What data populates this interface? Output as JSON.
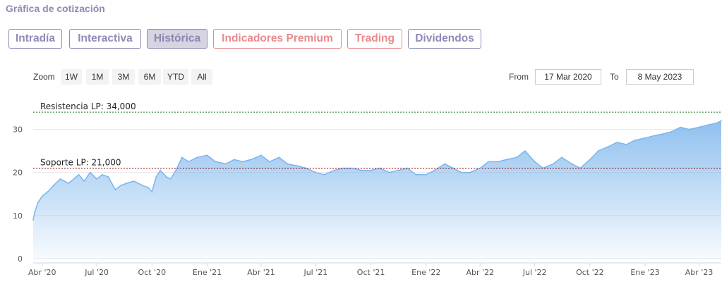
{
  "header": {
    "title": "Gráfica de cotización"
  },
  "tabs": [
    {
      "label": "Intradía",
      "active": false,
      "premium": false
    },
    {
      "label": "Interactiva",
      "active": false,
      "premium": false
    },
    {
      "label": "Histórica",
      "active": true,
      "premium": false
    },
    {
      "label": "Indicadores Premium",
      "active": false,
      "premium": true
    },
    {
      "label": "Trading",
      "active": false,
      "premium": true
    },
    {
      "label": "Dividendos",
      "active": false,
      "premium": false
    }
  ],
  "zoom": {
    "label": "Zoom",
    "buttons": [
      "1W",
      "1M",
      "3M",
      "6M",
      "YTD",
      "All"
    ]
  },
  "range": {
    "from_label": "From",
    "from_value": "17 Mar 2020",
    "to_label": "To",
    "to_value": "8 May 2023"
  },
  "colors": {
    "accent": "#8e8bb4",
    "premium": "#e9898d",
    "line": "#7cb5ec",
    "resistance": "#1a7a1a",
    "support": "#8b0000"
  },
  "chart_data": {
    "type": "area",
    "ylim": [
      0,
      35
    ],
    "yticks": [
      0,
      10,
      20,
      30
    ],
    "xticks": [
      "Abr '20",
      "Jul '20",
      "Oct '20",
      "Ene '21",
      "Abr '21",
      "Jul '21",
      "Oct '21",
      "Ene '22",
      "Abr '22",
      "Jul '22",
      "Oct '22",
      "Ene '23",
      "Abr '23"
    ],
    "x": [
      "2020-03-17",
      "2020-03-20",
      "2020-03-25",
      "2020-04-01",
      "2020-04-10",
      "2020-04-20",
      "2020-05-01",
      "2020-05-15",
      "2020-06-01",
      "2020-06-10",
      "2020-06-20",
      "2020-07-01",
      "2020-07-10",
      "2020-07-20",
      "2020-08-01",
      "2020-08-10",
      "2020-08-20",
      "2020-09-01",
      "2020-09-15",
      "2020-09-25",
      "2020-10-01",
      "2020-10-08",
      "2020-10-15",
      "2020-10-25",
      "2020-11-01",
      "2020-11-10",
      "2020-11-20",
      "2020-12-01",
      "2020-12-15",
      "2021-01-01",
      "2021-01-15",
      "2021-02-01",
      "2021-02-15",
      "2021-03-01",
      "2021-03-15",
      "2021-04-01",
      "2021-04-15",
      "2021-05-01",
      "2021-05-15",
      "2021-06-01",
      "2021-06-15",
      "2021-07-01",
      "2021-07-15",
      "2021-08-01",
      "2021-08-15",
      "2021-09-01",
      "2021-09-15",
      "2021-10-01",
      "2021-10-15",
      "2021-11-01",
      "2021-11-15",
      "2021-12-01",
      "2021-12-15",
      "2022-01-01",
      "2022-01-15",
      "2022-02-01",
      "2022-02-15",
      "2022-03-01",
      "2022-03-15",
      "2022-04-01",
      "2022-04-15",
      "2022-05-01",
      "2022-05-15",
      "2022-06-01",
      "2022-06-15",
      "2022-07-01",
      "2022-07-15",
      "2022-08-01",
      "2022-08-15",
      "2022-09-01",
      "2022-09-15",
      "2022-10-01",
      "2022-10-15",
      "2022-11-01",
      "2022-11-15",
      "2022-12-01",
      "2022-12-15",
      "2023-01-01",
      "2023-01-15",
      "2023-02-01",
      "2023-02-15",
      "2023-03-01",
      "2023-03-15",
      "2023-04-01",
      "2023-04-15",
      "2023-05-01",
      "2023-05-08"
    ],
    "values": [
      9,
      11,
      13,
      14.5,
      15.5,
      17,
      18.5,
      17.5,
      19.5,
      18,
      20,
      18.5,
      19.5,
      19,
      16,
      17,
      17.5,
      18,
      17,
      16.5,
      15.5,
      19,
      20.5,
      19,
      18.5,
      20.5,
      23.5,
      22.5,
      23.5,
      24,
      22.5,
      22,
      23,
      22.5,
      23,
      24,
      22.5,
      23.5,
      22,
      21.5,
      21,
      20,
      19.5,
      20.5,
      21,
      21,
      20.5,
      20.5,
      21,
      20,
      20.5,
      21,
      19.5,
      19.5,
      20.5,
      22,
      21,
      20,
      20,
      21,
      22.5,
      22.5,
      23,
      23.5,
      25,
      22.5,
      21,
      22,
      23.5,
      22,
      21,
      23,
      25,
      26,
      27,
      26.5,
      27.5,
      28,
      28.5,
      29,
      29.5,
      30.5,
      30,
      30.5,
      31,
      31.5,
      32
    ],
    "annotations": [
      {
        "label": "Resistencia LP: 34,000",
        "value": 34
      },
      {
        "label": "Soporte LP: 21,000",
        "value": 21
      }
    ]
  }
}
